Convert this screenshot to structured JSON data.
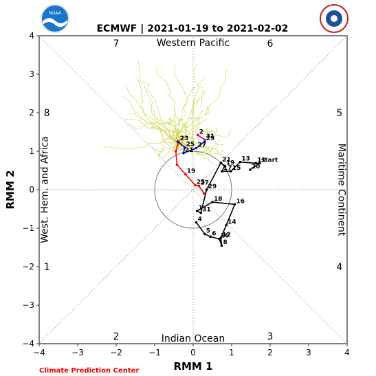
{
  "chart_data": {
    "type": "line",
    "title": "ECMWF | 2021-01-19 to 2021-02-02",
    "xlabel": "RMM 1",
    "ylabel": "RMM 2",
    "xlim": [
      -4,
      4
    ],
    "ylim": [
      -4,
      4
    ],
    "x_ticks": [
      "−4",
      "−3",
      "−2",
      "−1",
      "0",
      "1",
      "2",
      "3",
      "4"
    ],
    "y_ticks": [
      "−4",
      "−3",
      "−2",
      "−1",
      "0",
      "1",
      "2",
      "3",
      "4"
    ],
    "grid": "dashed diagonals and center axes",
    "phase_labels": [
      {
        "label": "1",
        "x": -3.8,
        "y": -2.0
      },
      {
        "label": "2",
        "x": -2.0,
        "y": -3.8
      },
      {
        "label": "3",
        "x": 2.0,
        "y": -3.8
      },
      {
        "label": "4",
        "x": 3.8,
        "y": -2.0
      },
      {
        "label": "5",
        "x": 3.8,
        "y": 2.0
      },
      {
        "label": "6",
        "x": 2.0,
        "y": 3.8
      },
      {
        "label": "7",
        "x": -2.0,
        "y": 3.8
      },
      {
        "label": "8",
        "x": -3.8,
        "y": 2.0
      }
    ],
    "region_labels": {
      "top": "Western Pacific",
      "bottom": "Indian Ocean",
      "left": "West. Hem. and Africa",
      "right": "Maritime Continent"
    },
    "series": [
      {
        "color": "#000000",
        "points": [
          {
            "x": 0.08,
            "y": -0.85,
            "label": "4"
          },
          {
            "x": 0.3,
            "y": -1.15,
            "label": "5"
          },
          {
            "x": 0.45,
            "y": -1.22,
            "label": "6"
          },
          {
            "x": 0.68,
            "y": -1.28,
            "label": "10"
          },
          {
            "x": 0.74,
            "y": -1.45,
            "label": "8"
          },
          {
            "x": 0.72,
            "y": -1.25,
            "label": "12"
          },
          {
            "x": 0.86,
            "y": -0.92,
            "label": "14"
          },
          {
            "x": 1.08,
            "y": -0.38,
            "label": "16"
          },
          {
            "x": 0.5,
            "y": -0.32,
            "label": "18"
          },
          {
            "x": 0.1,
            "y": -0.55,
            "label": "1"
          },
          {
            "x": 0.2,
            "y": -0.6,
            "label": "31"
          },
          {
            "x": 0.35,
            "y": 0.0,
            "label": "29"
          },
          {
            "x": 0.72,
            "y": 0.7,
            "label": "21"
          },
          {
            "x": 0.82,
            "y": 0.62,
            "label": "19"
          },
          {
            "x": 0.75,
            "y": 0.48,
            "label": "17"
          },
          {
            "x": 0.98,
            "y": 0.48,
            "label": "15"
          },
          {
            "x": 1.22,
            "y": 0.72,
            "label": "13"
          },
          {
            "x": 1.63,
            "y": 0.69,
            "label": "11"
          },
          {
            "x": 1.73,
            "y": 0.69,
            "label": "start"
          },
          {
            "x": 1.48,
            "y": 0.52,
            "label": "20"
          }
        ]
      },
      {
        "color": "#ff0000",
        "points": [
          {
            "x": -0.38,
            "y": 1.25,
            "label": "23"
          },
          {
            "x": -0.45,
            "y": 1.0,
            "label": ""
          },
          {
            "x": -0.42,
            "y": 0.65,
            "label": ""
          },
          {
            "x": -0.2,
            "y": 0.4,
            "label": "19"
          },
          {
            "x": 0.05,
            "y": 0.12,
            "label": "25"
          },
          {
            "x": 0.15,
            "y": 0.1,
            "label": "27"
          },
          {
            "x": 0.28,
            "y": -0.1,
            "label": ""
          }
        ]
      },
      {
        "color": "#0000cc",
        "points": [
          {
            "x": -0.4,
            "y": 1.25,
            "label": ""
          },
          {
            "x": -0.22,
            "y": 1.1,
            "label": "25"
          },
          {
            "x": -0.25,
            "y": 0.95,
            "label": "21"
          },
          {
            "x": 0.08,
            "y": 1.08,
            "label": "27"
          },
          {
            "x": 0.3,
            "y": 1.25,
            "label": "29"
          }
        ]
      },
      {
        "color": "#bb00bb",
        "points": [
          {
            "x": 0.12,
            "y": 1.42,
            "label": "2"
          },
          {
            "x": 0.3,
            "y": 1.3,
            "label": "31"
          }
        ]
      }
    ],
    "credit": "Climate Prediction Center"
  }
}
